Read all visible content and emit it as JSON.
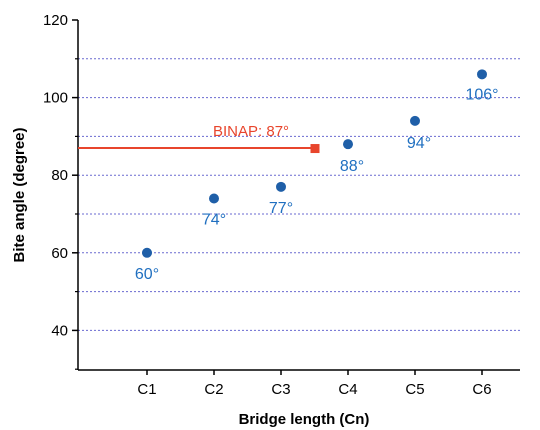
{
  "chart_data": {
    "type": "scatter",
    "xlabel": "Bridge length (Cn)",
    "ylabel": "Bite angle (degree)",
    "categories": [
      "C1",
      "C2",
      "C3",
      "C4",
      "C5",
      "C6"
    ],
    "values": [
      60,
      74,
      77,
      88,
      94,
      106
    ],
    "point_labels": [
      "60°",
      "74°",
      "77°",
      "88°",
      "94°",
      "106°"
    ],
    "ylim": [
      30,
      120
    ],
    "y_ticks": [
      40,
      60,
      80,
      100,
      120
    ],
    "y_minor_ticks": [
      30,
      50,
      70,
      90,
      110
    ],
    "gridlines": "dotted horizontal",
    "reference": {
      "label": "BINAP: 87°",
      "value": 87,
      "x_start": 0.5,
      "x_end": 3.5
    },
    "colors": {
      "points": "#1f5fa8",
      "labels": "#1f6fc0",
      "reference": "#e8452c",
      "grid": "#6a6ad0",
      "axis": "#000000"
    }
  }
}
